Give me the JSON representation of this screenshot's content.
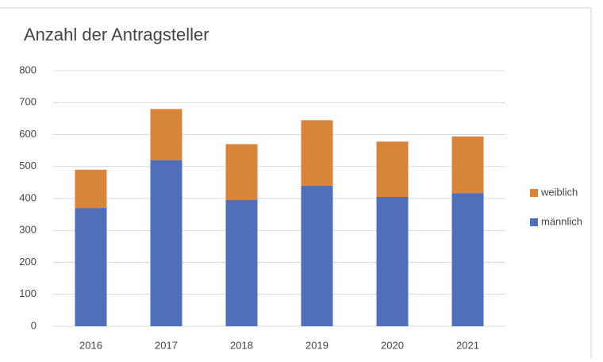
{
  "chart_data": {
    "type": "stacked_bar",
    "title": "Anzahl der Antragsteller",
    "categories": [
      "2016",
      "2017",
      "2018",
      "2019",
      "2020",
      "2021"
    ],
    "series": [
      {
        "name": "männlich",
        "color": "#4f6fb8",
        "values": [
          370,
          520,
          395,
          440,
          405,
          417
        ]
      },
      {
        "name": "weiblich",
        "color": "#d9843b",
        "values": [
          120,
          160,
          175,
          205,
          173,
          177
        ]
      }
    ],
    "ylim": [
      0,
      800
    ],
    "yticks": [
      0,
      100,
      200,
      300,
      400,
      500,
      600,
      700,
      800
    ],
    "grid": true,
    "legend": "right"
  }
}
